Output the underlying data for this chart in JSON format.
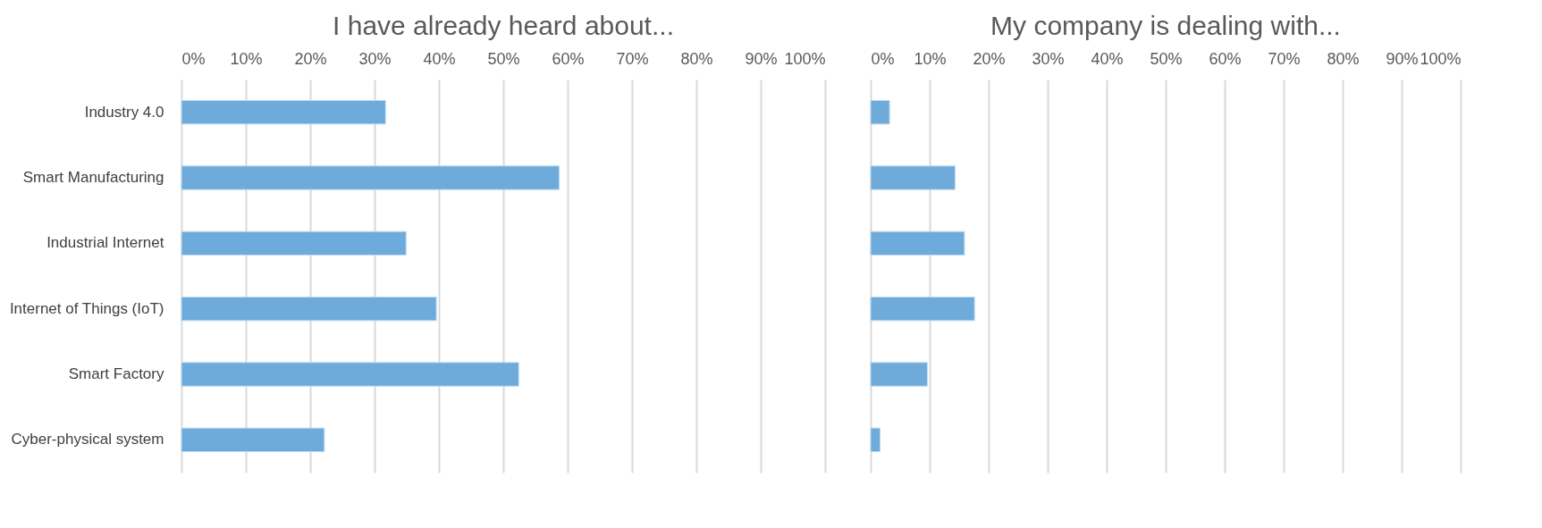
{
  "chart_data": [
    {
      "type": "bar",
      "orientation": "horizontal",
      "title": "I have already heard about...",
      "categories": [
        "Industry 4.0",
        "Smart Manufacturing",
        "Industrial Internet",
        "Internet of Things (IoT)",
        "Smart Factory",
        "Cyber-physical system"
      ],
      "values": [
        31.7,
        58.7,
        34.9,
        39.6,
        52.4,
        22.2
      ],
      "color": "#6eabdb",
      "xlim": [
        0,
        100
      ],
      "xticks": [
        {
          "value": 0,
          "label": "0%"
        },
        {
          "value": 10,
          "label": "10%"
        },
        {
          "value": 20,
          "label": "20%"
        },
        {
          "value": 30,
          "label": "30%"
        },
        {
          "value": 40,
          "label": "40%"
        },
        {
          "value": 50,
          "label": "50%"
        },
        {
          "value": 60,
          "label": "60%"
        },
        {
          "value": 70,
          "label": "70%"
        },
        {
          "value": 80,
          "label": "80%"
        },
        {
          "value": 90,
          "label": "90%"
        },
        {
          "value": 100,
          "label": "100%"
        }
      ],
      "grid": "x"
    },
    {
      "type": "bar",
      "orientation": "horizontal",
      "title": "My company is dealing with...",
      "categories": [
        null,
        null,
        null,
        null,
        null,
        null
      ],
      "values": [
        3.2,
        14.3,
        15.9,
        17.6,
        9.6,
        1.6
      ],
      "color": "#6eabdb",
      "xlim": [
        0,
        100
      ],
      "xticks": [
        {
          "value": 0,
          "label": "0%"
        },
        {
          "value": 10,
          "label": "10%"
        },
        {
          "value": 20,
          "label": "20%"
        },
        {
          "value": 30,
          "label": "30%"
        },
        {
          "value": 40,
          "label": "40%"
        },
        {
          "value": 50,
          "label": "50%"
        },
        {
          "value": 60,
          "label": "60%"
        },
        {
          "value": 70,
          "label": "70%"
        },
        {
          "value": 80,
          "label": "80%"
        },
        {
          "value": 90,
          "label": "90%"
        },
        {
          "value": 100,
          "label": "100%"
        }
      ],
      "grid": "x",
      "tick_labels": "x"
    }
  ]
}
